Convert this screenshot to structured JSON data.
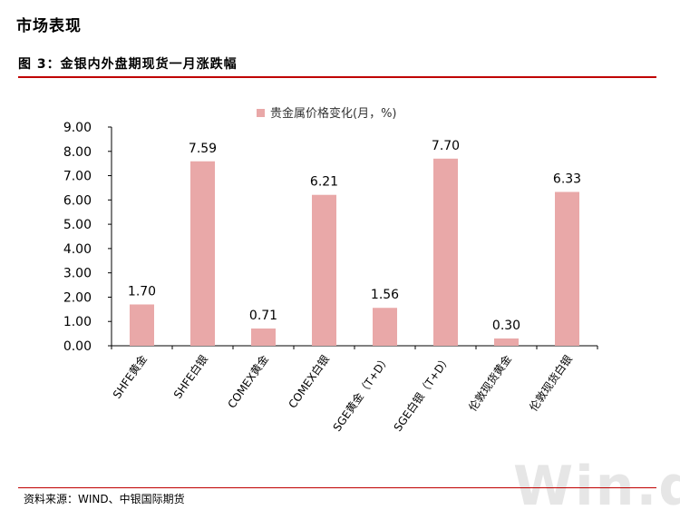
{
  "section_title": "市场表现",
  "figure_title": "图 3：金银内外盘期现货一月涨跌幅",
  "source": "资料来源：WIND、中银国际期货",
  "watermark": "Win.d",
  "colors": {
    "bar": "#e9a8a8",
    "rule": "#c00000",
    "axis": "#000000"
  },
  "chart_data": {
    "type": "bar",
    "categories": [
      "SHFE黄金",
      "SHFE白银",
      "COMEX黄金",
      "COMEX白银",
      "SGE黄金（T+D）",
      "SGE白银（T+D）",
      "伦敦现货黄金",
      "伦敦现货白银"
    ],
    "series": [
      {
        "name": "贵金属价格变化(月，%)",
        "values": [
          1.7,
          7.59,
          0.71,
          6.21,
          1.56,
          7.7,
          0.3,
          6.33
        ]
      }
    ],
    "data_labels": [
      "1.70",
      "7.59",
      "0.71",
      "6.21",
      "1.56",
      "7.70",
      "0.30",
      "6.33"
    ],
    "y_ticks": [
      "0.00",
      "1.00",
      "2.00",
      "3.00",
      "4.00",
      "5.00",
      "6.00",
      "7.00",
      "8.00",
      "9.00"
    ],
    "ylim": [
      0,
      9
    ],
    "legend_position": "top",
    "grid": false,
    "title": "",
    "xlabel": "",
    "ylabel": ""
  }
}
